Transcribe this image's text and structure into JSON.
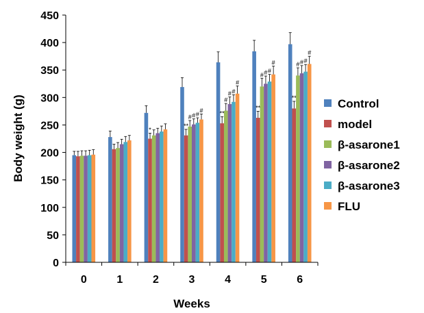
{
  "chart_data": {
    "type": "bar",
    "title": "",
    "xlabel": "Weeks",
    "ylabel": "Body weight (g)",
    "categories": [
      "0",
      "1",
      "2",
      "3",
      "4",
      "5",
      "6"
    ],
    "ylim": [
      0,
      450
    ],
    "y_ticks": [
      "0",
      "50",
      "100",
      "150",
      "200",
      "250",
      "300",
      "350",
      "400",
      "450"
    ],
    "grid": false,
    "legend_position": "right",
    "error_bars": true,
    "series": [
      {
        "name": "Control",
        "color": "#4F81BD",
        "values": [
          195,
          228,
          272,
          319,
          364,
          384,
          397
        ],
        "errors": [
          7,
          11,
          13,
          17,
          19,
          20,
          21
        ],
        "marks": [
          "",
          "",
          "",
          "",
          "",
          "",
          ""
        ]
      },
      {
        "name": "model",
        "color": "#C0504D",
        "values": [
          193,
          206,
          225,
          231,
          253,
          263,
          280
        ],
        "errors": [
          9,
          9,
          10,
          11,
          12,
          12,
          13
        ],
        "marks": [
          "",
          "",
          "*",
          "**",
          "**",
          "**",
          "**"
        ]
      },
      {
        "name": "β-asarone1",
        "color": "#9BBB59",
        "values": [
          194,
          208,
          231,
          247,
          276,
          320,
          340
        ],
        "errors": [
          9,
          10,
          10,
          11,
          13,
          15,
          14
        ],
        "marks": [
          "",
          "",
          "",
          "#",
          "#",
          "#",
          "#"
        ]
      },
      {
        "name": "β-asarone2",
        "color": "#8064A2",
        "values": [
          194,
          215,
          235,
          251,
          288,
          325,
          344
        ],
        "errors": [
          9,
          9,
          9,
          10,
          13,
          14,
          14
        ],
        "marks": [
          "",
          "",
          "",
          "#",
          "#",
          "#",
          "#"
        ]
      },
      {
        "name": "β-asarone3",
        "color": "#4BACC6",
        "values": [
          195,
          219,
          238,
          254,
          292,
          329,
          347
        ],
        "errors": [
          9,
          10,
          10,
          9,
          13,
          13,
          13
        ],
        "marks": [
          "",
          "",
          "",
          "#",
          "#",
          "#",
          "#"
        ]
      },
      {
        "name": "FLU",
        "color": "#F79646",
        "values": [
          196,
          222,
          242,
          260,
          307,
          342,
          361
        ],
        "errors": [
          9,
          9,
          10,
          10,
          14,
          15,
          14
        ],
        "marks": [
          "",
          "",
          "",
          "#",
          "#",
          "#",
          "#"
        ]
      }
    ]
  }
}
